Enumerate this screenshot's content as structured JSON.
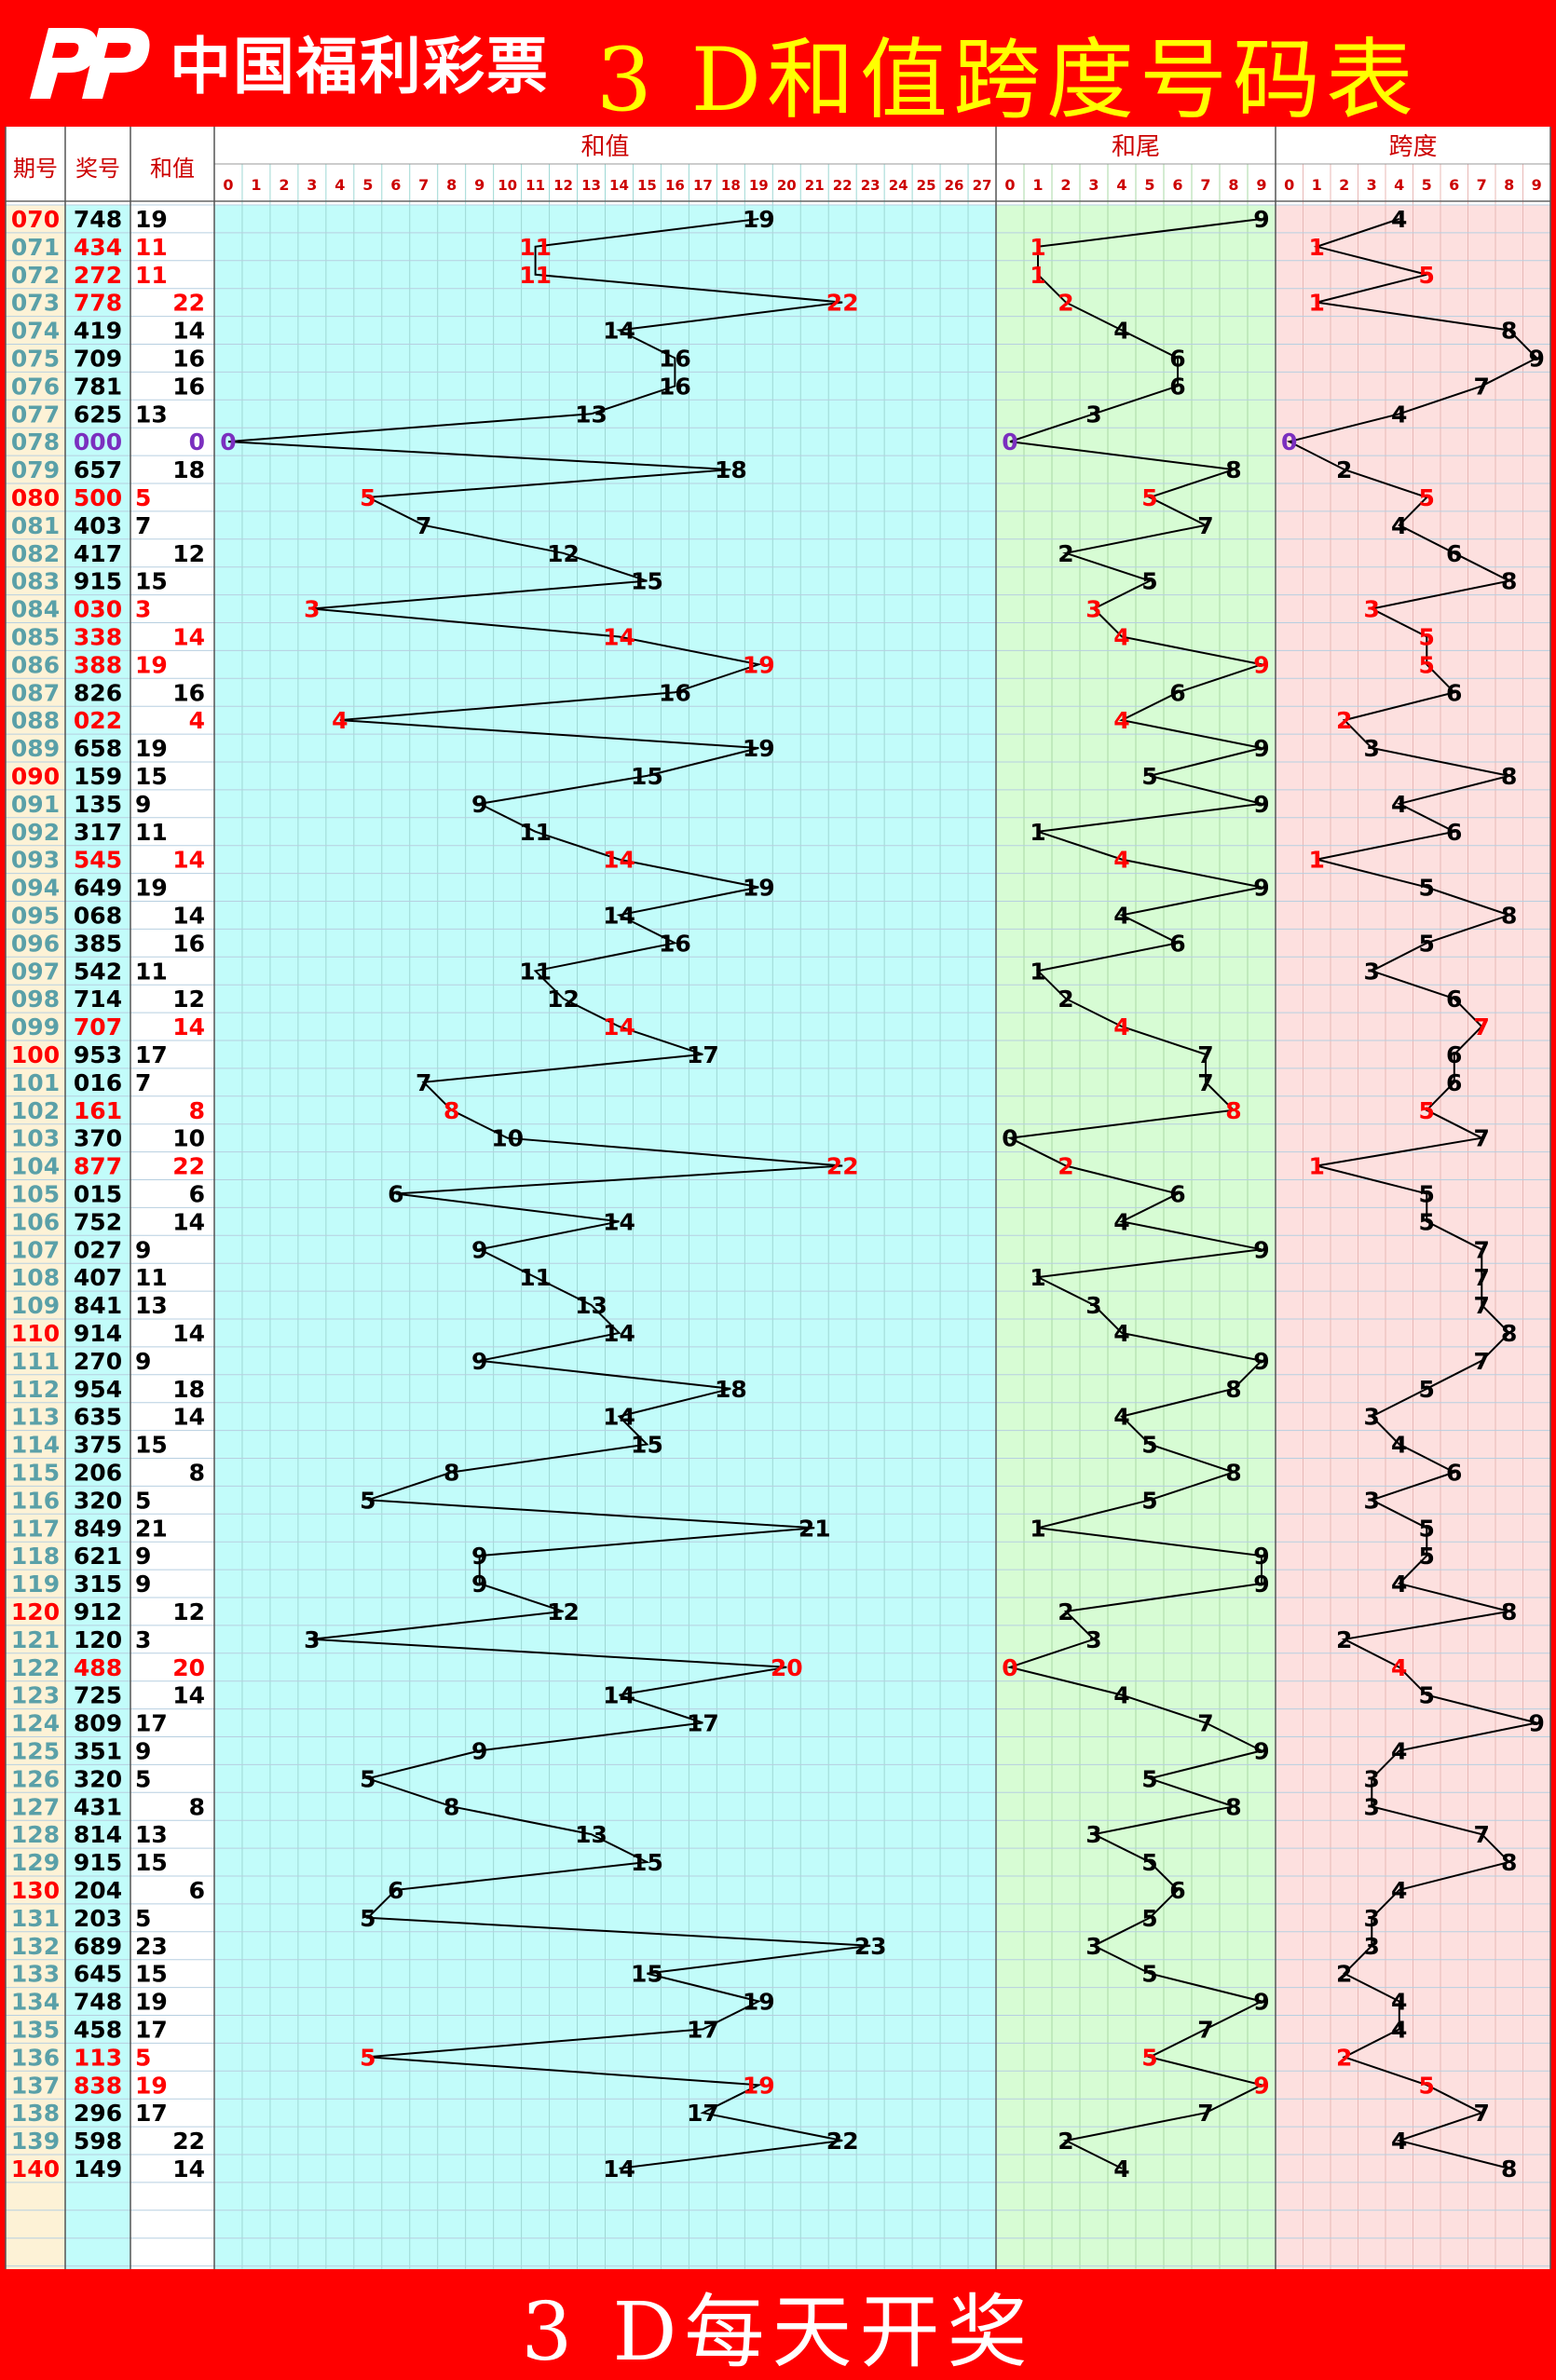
{
  "header": {
    "logo_text": "中国福利彩票",
    "title": "3 D和值跨度号码表"
  },
  "footer": {
    "text": "3 D每天开奖"
  },
  "table": {
    "col_period": "期号",
    "col_number": "奖号",
    "col_sum": "和值",
    "section_sum": "和值",
    "section_tail": "和尾",
    "section_span": "跨度"
  },
  "colors": {
    "banner": "#ff0000",
    "title": "#ffff00",
    "period_bg": "#fdf2d6",
    "sum_bg": "#c2fcfa",
    "tail_bg": "#d7fcd4",
    "span_bg": "#fde0df",
    "highlight": "#ff0000",
    "zero": "#7b2fbf"
  },
  "chart_data": {
    "type": "line",
    "draws": [
      {
        "period": "070",
        "number": "748",
        "sum": 19,
        "tail": 9,
        "span": 4,
        "red": false
      },
      {
        "period": "071",
        "number": "434",
        "sum": 11,
        "tail": 1,
        "span": 1,
        "red": true
      },
      {
        "period": "072",
        "number": "272",
        "sum": 11,
        "tail": 1,
        "span": 5,
        "red": true
      },
      {
        "period": "073",
        "number": "778",
        "sum": 22,
        "tail": 2,
        "span": 1,
        "red": true
      },
      {
        "period": "074",
        "number": "419",
        "sum": 14,
        "tail": 4,
        "span": 8,
        "red": false
      },
      {
        "period": "075",
        "number": "709",
        "sum": 16,
        "tail": 6,
        "span": 9,
        "red": false
      },
      {
        "period": "076",
        "number": "781",
        "sum": 16,
        "tail": 6,
        "span": 7,
        "red": false
      },
      {
        "period": "077",
        "number": "625",
        "sum": 13,
        "tail": 3,
        "span": 4,
        "red": false
      },
      {
        "period": "078",
        "number": "000",
        "sum": 0,
        "tail": 0,
        "span": 0,
        "red": false
      },
      {
        "period": "079",
        "number": "657",
        "sum": 18,
        "tail": 8,
        "span": 2,
        "red": false
      },
      {
        "period": "080",
        "number": "500",
        "sum": 5,
        "tail": 5,
        "span": 5,
        "red": true
      },
      {
        "period": "081",
        "number": "403",
        "sum": 7,
        "tail": 7,
        "span": 4,
        "red": false
      },
      {
        "period": "082",
        "number": "417",
        "sum": 12,
        "tail": 2,
        "span": 6,
        "red": false
      },
      {
        "period": "083",
        "number": "915",
        "sum": 15,
        "tail": 5,
        "span": 8,
        "red": false
      },
      {
        "period": "084",
        "number": "030",
        "sum": 3,
        "tail": 3,
        "span": 3,
        "red": true
      },
      {
        "period": "085",
        "number": "338",
        "sum": 14,
        "tail": 4,
        "span": 5,
        "red": true
      },
      {
        "period": "086",
        "number": "388",
        "sum": 19,
        "tail": 9,
        "span": 5,
        "red": true
      },
      {
        "period": "087",
        "number": "826",
        "sum": 16,
        "tail": 6,
        "span": 6,
        "red": false
      },
      {
        "period": "088",
        "number": "022",
        "sum": 4,
        "tail": 4,
        "span": 2,
        "red": true
      },
      {
        "period": "089",
        "number": "658",
        "sum": 19,
        "tail": 9,
        "span": 3,
        "red": false
      },
      {
        "period": "090",
        "number": "159",
        "sum": 15,
        "tail": 5,
        "span": 8,
        "red": false
      },
      {
        "period": "091",
        "number": "135",
        "sum": 9,
        "tail": 9,
        "span": 4,
        "red": false
      },
      {
        "period": "092",
        "number": "317",
        "sum": 11,
        "tail": 1,
        "span": 6,
        "red": false
      },
      {
        "period": "093",
        "number": "545",
        "sum": 14,
        "tail": 4,
        "span": 1,
        "red": true
      },
      {
        "period": "094",
        "number": "649",
        "sum": 19,
        "tail": 9,
        "span": 5,
        "red": false
      },
      {
        "period": "095",
        "number": "068",
        "sum": 14,
        "tail": 4,
        "span": 8,
        "red": false
      },
      {
        "period": "096",
        "number": "385",
        "sum": 16,
        "tail": 6,
        "span": 5,
        "red": false
      },
      {
        "period": "097",
        "number": "542",
        "sum": 11,
        "tail": 1,
        "span": 3,
        "red": false
      },
      {
        "period": "098",
        "number": "714",
        "sum": 12,
        "tail": 2,
        "span": 6,
        "red": false
      },
      {
        "period": "099",
        "number": "707",
        "sum": 14,
        "tail": 4,
        "span": 7,
        "red": true
      },
      {
        "period": "100",
        "number": "953",
        "sum": 17,
        "tail": 7,
        "span": 6,
        "red": false
      },
      {
        "period": "101",
        "number": "016",
        "sum": 7,
        "tail": 7,
        "span": 6,
        "red": false
      },
      {
        "period": "102",
        "number": "161",
        "sum": 8,
        "tail": 8,
        "span": 5,
        "red": true
      },
      {
        "period": "103",
        "number": "370",
        "sum": 10,
        "tail": 0,
        "span": 7,
        "red": false
      },
      {
        "period": "104",
        "number": "877",
        "sum": 22,
        "tail": 2,
        "span": 1,
        "red": true
      },
      {
        "period": "105",
        "number": "015",
        "sum": 6,
        "tail": 6,
        "span": 5,
        "red": false
      },
      {
        "period": "106",
        "number": "752",
        "sum": 14,
        "tail": 4,
        "span": 5,
        "red": false
      },
      {
        "period": "107",
        "number": "027",
        "sum": 9,
        "tail": 9,
        "span": 7,
        "red": false
      },
      {
        "period": "108",
        "number": "407",
        "sum": 11,
        "tail": 1,
        "span": 7,
        "red": false
      },
      {
        "period": "109",
        "number": "841",
        "sum": 13,
        "tail": 3,
        "span": 7,
        "red": false
      },
      {
        "period": "110",
        "number": "914",
        "sum": 14,
        "tail": 4,
        "span": 8,
        "red": false
      },
      {
        "period": "111",
        "number": "270",
        "sum": 9,
        "tail": 9,
        "span": 7,
        "red": false
      },
      {
        "period": "112",
        "number": "954",
        "sum": 18,
        "tail": 8,
        "span": 5,
        "red": false
      },
      {
        "period": "113",
        "number": "635",
        "sum": 14,
        "tail": 4,
        "span": 3,
        "red": false
      },
      {
        "period": "114",
        "number": "375",
        "sum": 15,
        "tail": 5,
        "span": 4,
        "red": false
      },
      {
        "period": "115",
        "number": "206",
        "sum": 8,
        "tail": 8,
        "span": 6,
        "red": false
      },
      {
        "period": "116",
        "number": "320",
        "sum": 5,
        "tail": 5,
        "span": 3,
        "red": false
      },
      {
        "period": "117",
        "number": "849",
        "sum": 21,
        "tail": 1,
        "span": 5,
        "red": false
      },
      {
        "period": "118",
        "number": "621",
        "sum": 9,
        "tail": 9,
        "span": 5,
        "red": false
      },
      {
        "period": "119",
        "number": "315",
        "sum": 9,
        "tail": 9,
        "span": 4,
        "red": false
      },
      {
        "period": "120",
        "number": "912",
        "sum": 12,
        "tail": 2,
        "span": 8,
        "red": false
      },
      {
        "period": "121",
        "number": "120",
        "sum": 3,
        "tail": 3,
        "span": 2,
        "red": false
      },
      {
        "period": "122",
        "number": "488",
        "sum": 20,
        "tail": 0,
        "span": 4,
        "red": true
      },
      {
        "period": "123",
        "number": "725",
        "sum": 14,
        "tail": 4,
        "span": 5,
        "red": false
      },
      {
        "period": "124",
        "number": "809",
        "sum": 17,
        "tail": 7,
        "span": 9,
        "red": false
      },
      {
        "period": "125",
        "number": "351",
        "sum": 9,
        "tail": 9,
        "span": 4,
        "red": false
      },
      {
        "period": "126",
        "number": "320",
        "sum": 5,
        "tail": 5,
        "span": 3,
        "red": false
      },
      {
        "period": "127",
        "number": "431",
        "sum": 8,
        "tail": 8,
        "span": 3,
        "red": false
      },
      {
        "period": "128",
        "number": "814",
        "sum": 13,
        "tail": 3,
        "span": 7,
        "red": false
      },
      {
        "period": "129",
        "number": "915",
        "sum": 15,
        "tail": 5,
        "span": 8,
        "red": false
      },
      {
        "period": "130",
        "number": "204",
        "sum": 6,
        "tail": 6,
        "span": 4,
        "red": false
      },
      {
        "period": "131",
        "number": "203",
        "sum": 5,
        "tail": 5,
        "span": 3,
        "red": false
      },
      {
        "period": "132",
        "number": "689",
        "sum": 23,
        "tail": 3,
        "span": 3,
        "red": false
      },
      {
        "period": "133",
        "number": "645",
        "sum": 15,
        "tail": 5,
        "span": 2,
        "red": false
      },
      {
        "period": "134",
        "number": "748",
        "sum": 19,
        "tail": 9,
        "span": 4,
        "red": false
      },
      {
        "period": "135",
        "number": "458",
        "sum": 17,
        "tail": 7,
        "span": 4,
        "red": false
      },
      {
        "period": "136",
        "number": "113",
        "sum": 5,
        "tail": 5,
        "span": 2,
        "red": true
      },
      {
        "period": "137",
        "number": "838",
        "sum": 19,
        "tail": 9,
        "span": 5,
        "red": true
      },
      {
        "period": "138",
        "number": "296",
        "sum": 17,
        "tail": 7,
        "span": 7,
        "red": false
      },
      {
        "period": "139",
        "number": "598",
        "sum": 22,
        "tail": 2,
        "span": 4,
        "red": false
      },
      {
        "period": "140",
        "number": "149",
        "sum": 14,
        "tail": 4,
        "span": 8,
        "red": false
      }
    ],
    "sum_axis": [
      0,
      1,
      2,
      3,
      4,
      5,
      6,
      7,
      8,
      9,
      10,
      11,
      12,
      13,
      14,
      15,
      16,
      17,
      18,
      19,
      20,
      21,
      22,
      23,
      24,
      25,
      26,
      27
    ],
    "tail_axis": [
      0,
      1,
      2,
      3,
      4,
      5,
      6,
      7,
      8,
      9
    ],
    "span_axis": [
      0,
      1,
      2,
      3,
      4,
      5,
      6,
      7,
      8,
      9
    ],
    "grid": true
  }
}
